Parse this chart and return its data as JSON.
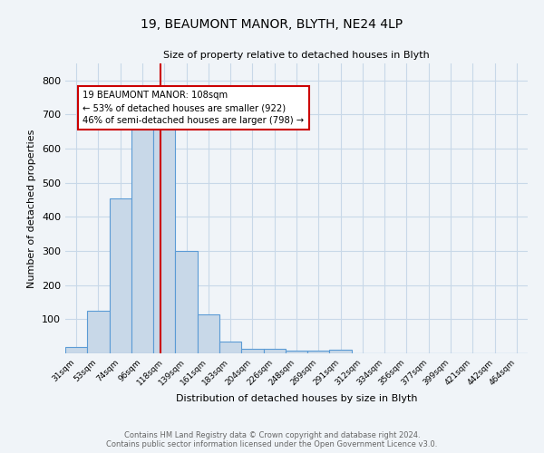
{
  "title1": "19, BEAUMONT MANOR, BLYTH, NE24 4LP",
  "title2": "Size of property relative to detached houses in Blyth",
  "xlabel": "Distribution of detached houses by size in Blyth",
  "ylabel": "Number of detached properties",
  "bin_labels": [
    "31sqm",
    "53sqm",
    "74sqm",
    "96sqm",
    "118sqm",
    "139sqm",
    "161sqm",
    "183sqm",
    "204sqm",
    "226sqm",
    "248sqm",
    "269sqm",
    "291sqm",
    "312sqm",
    "334sqm",
    "356sqm",
    "377sqm",
    "399sqm",
    "421sqm",
    "442sqm",
    "464sqm"
  ],
  "bar_heights": [
    18,
    125,
    455,
    670,
    670,
    300,
    115,
    35,
    13,
    12,
    9,
    8,
    10,
    0,
    0,
    0,
    0,
    0,
    0,
    0,
    0
  ],
  "bar_color": "#c8d8e8",
  "bar_edge_color": "#5b9bd5",
  "red_line_bin": 3.82,
  "annotation_text": "19 BEAUMONT MANOR: 108sqm\n← 53% of detached houses are smaller (922)\n46% of semi-detached houses are larger (798) →",
  "vline_color": "#cc0000",
  "annotation_box_facecolor": "#ffffff",
  "annotation_box_edgecolor": "#cc0000",
  "grid_color": "#c8d8e8",
  "background_color": "#f0f4f8",
  "footer_text": "Contains HM Land Registry data © Crown copyright and database right 2024.\nContains public sector information licensed under the Open Government Licence v3.0.",
  "ylim": [
    0,
    850
  ],
  "yticks": [
    0,
    100,
    200,
    300,
    400,
    500,
    600,
    700,
    800
  ]
}
